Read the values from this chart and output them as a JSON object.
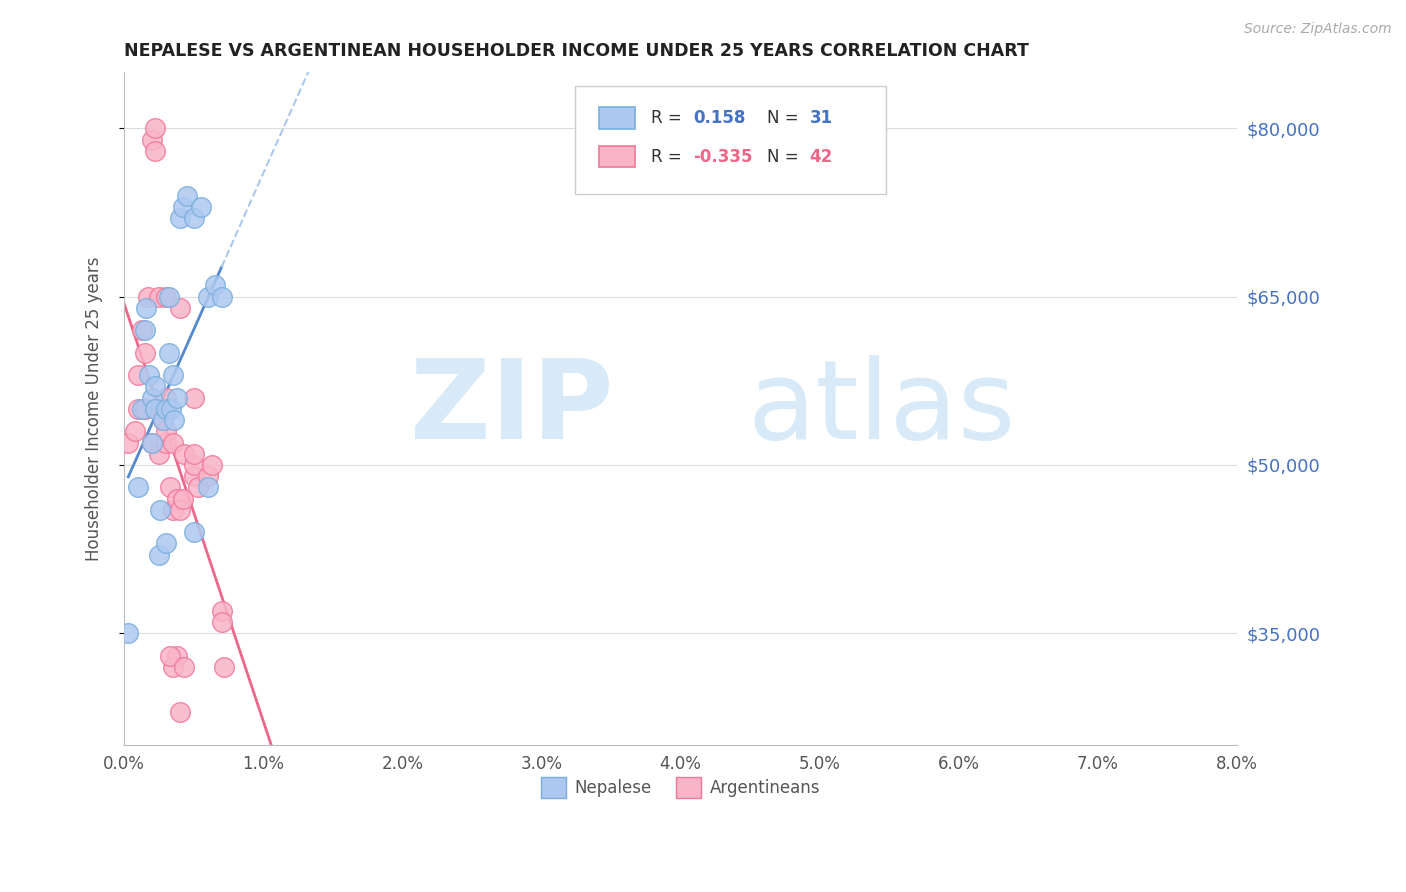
{
  "title": "NEPALESE VS ARGENTINEAN HOUSEHOLDER INCOME UNDER 25 YEARS CORRELATION CHART",
  "source": "Source: ZipAtlas.com",
  "ylabel": "Householder Income Under 25 years",
  "yticks": [
    35000,
    50000,
    65000,
    80000
  ],
  "ytick_labels": [
    "$35,000",
    "$50,000",
    "$65,000",
    "$80,000"
  ],
  "nepalese_color": "#adc8f0",
  "argentinean_color": "#f9b4c8",
  "nepalese_edge_color": "#7aaedd",
  "argentinean_edge_color": "#f07898",
  "nepalese_line_color": "#5588cc",
  "argentinean_line_color": "#ee6688",
  "dashed_line_color": "#aac8ee",
  "watermark_color": "#d8eaf8",
  "nepalese_x": [
    0.0003,
    0.001,
    0.0013,
    0.0015,
    0.0016,
    0.0018,
    0.002,
    0.002,
    0.0022,
    0.0022,
    0.0025,
    0.0026,
    0.0028,
    0.003,
    0.003,
    0.0032,
    0.0032,
    0.0034,
    0.0035,
    0.0036,
    0.0038,
    0.004,
    0.0042,
    0.0045,
    0.005,
    0.005,
    0.0055,
    0.006,
    0.006,
    0.0065,
    0.007
  ],
  "nepalese_y": [
    35000,
    48000,
    55000,
    62000,
    64000,
    58000,
    56000,
    52000,
    55000,
    57000,
    42000,
    46000,
    54000,
    43000,
    55000,
    60000,
    65000,
    55000,
    58000,
    54000,
    56000,
    72000,
    73000,
    74000,
    44000,
    72000,
    73000,
    48000,
    65000,
    66000,
    65000
  ],
  "argentinean_x": [
    0.0003,
    0.0008,
    0.001,
    0.001,
    0.0013,
    0.0015,
    0.0015,
    0.0017,
    0.002,
    0.002,
    0.0022,
    0.0022,
    0.0025,
    0.0025,
    0.0028,
    0.003,
    0.003,
    0.003,
    0.003,
    0.0033,
    0.0035,
    0.0035,
    0.0038,
    0.004,
    0.004,
    0.0042,
    0.0043,
    0.005,
    0.005,
    0.005,
    0.005,
    0.0053,
    0.006,
    0.0063,
    0.007,
    0.007,
    0.0072,
    0.0038,
    0.0035,
    0.0033,
    0.0043,
    0.004
  ],
  "argentinean_y": [
    52000,
    53000,
    55000,
    58000,
    62000,
    55000,
    60000,
    65000,
    52000,
    79000,
    78000,
    80000,
    65000,
    51000,
    54000,
    56000,
    65000,
    52000,
    53000,
    48000,
    52000,
    46000,
    47000,
    64000,
    46000,
    47000,
    51000,
    56000,
    49000,
    50000,
    51000,
    48000,
    49000,
    50000,
    37000,
    36000,
    32000,
    33000,
    32000,
    33000,
    32000,
    28000
  ],
  "xmin": 0.0,
  "xmax": 0.08,
  "ymin": 25000,
  "ymax": 85000,
  "xticks": [
    0.0,
    0.01,
    0.02,
    0.03,
    0.04,
    0.05,
    0.06,
    0.07,
    0.08
  ],
  "xtick_labels": [
    "0.0%",
    "1.0%",
    "2.0%",
    "3.0%",
    "4.0%",
    "5.0%",
    "6.0%",
    "7.0%",
    "8.0%"
  ],
  "background_color": "#ffffff"
}
